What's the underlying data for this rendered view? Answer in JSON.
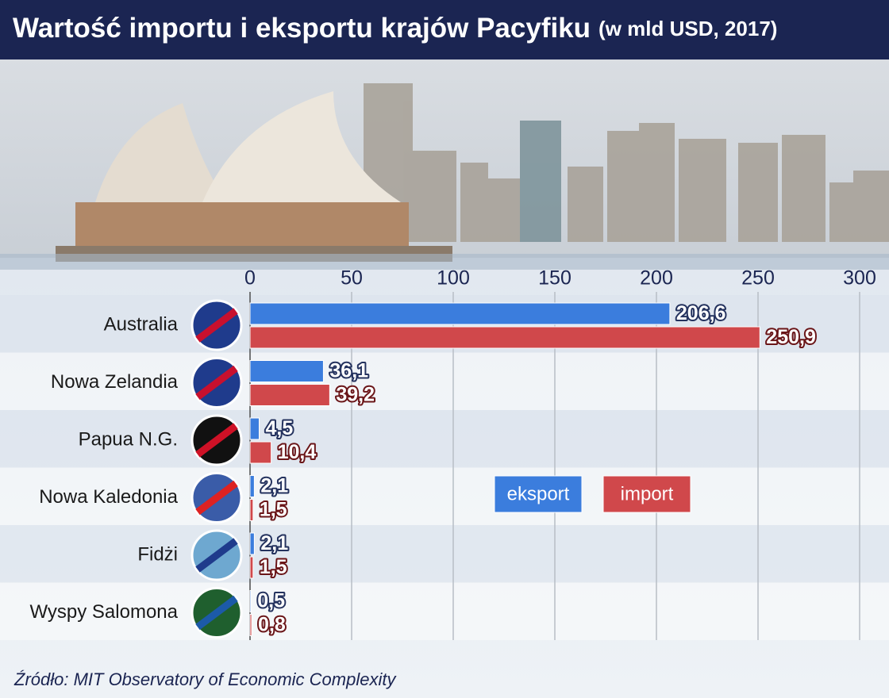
{
  "chart_data": {
    "type": "bar",
    "orientation": "horizontal",
    "title": "Wartość importu i eksportu krajów Pacyfiku",
    "subtitle": "(w mld USD, 2017)",
    "categories": [
      "Australia",
      "Nowa Zelandia",
      "Papua N.G.",
      "Nowa Kaledonia",
      "Fidżi",
      "Wyspy Salomona"
    ],
    "series": [
      {
        "name": "eksport",
        "color": "#3b7ddd",
        "values": [
          206.6,
          36.1,
          4.5,
          2.1,
          2.1,
          0.5
        ],
        "value_labels": [
          "206,6",
          "36,1",
          "4,5",
          "2,1",
          "2,1",
          "0,5"
        ]
      },
      {
        "name": "import",
        "color": "#d0484b",
        "values": [
          250.9,
          39.2,
          10.4,
          1.5,
          1.5,
          0.8
        ],
        "value_labels": [
          "250,9",
          "39,2",
          "10,4",
          "1,5",
          "1,5",
          "0,8"
        ]
      }
    ],
    "xlim": [
      0,
      300
    ],
    "xticks": [
      0,
      50,
      100,
      150,
      200,
      250,
      300
    ],
    "grid": true,
    "source": "Źródło: MIT Observatory of Economic Complexity"
  }
}
